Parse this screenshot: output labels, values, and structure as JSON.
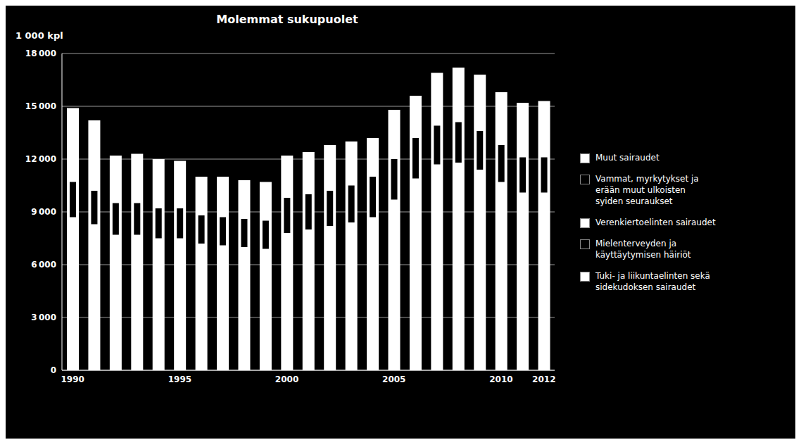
{
  "chart_data": {
    "type": "bar",
    "title": "Molemmat sukupuolet",
    "ylabel": "1 000 kpl",
    "background_color": "#000000",
    "categories": [
      "1990",
      null,
      null,
      null,
      null,
      "1995",
      null,
      null,
      null,
      null,
      "2000",
      null,
      null,
      null,
      null,
      "2005",
      null,
      null,
      null,
      null,
      "2010",
      null,
      "2012"
    ],
    "series": [
      {
        "color": "#ffffff",
        "values": [
          14900,
          14200,
          12200,
          12300,
          12000,
          11900,
          11000,
          11000,
          10800,
          10700,
          12200,
          12400,
          12800,
          13000,
          13200,
          14800,
          15600,
          16900,
          17200,
          16800,
          15800,
          15200,
          15300
        ]
      },
      {
        "color": "#000000",
        "values": [
          [
            8700,
            10700
          ],
          [
            8300,
            10200
          ],
          [
            7700,
            9500
          ],
          [
            7700,
            9500
          ],
          [
            7500,
            9200
          ],
          [
            7500,
            9200
          ],
          [
            7200,
            8800
          ],
          [
            7100,
            8700
          ],
          [
            7000,
            8600
          ],
          [
            6900,
            8500
          ],
          [
            7800,
            9800
          ],
          [
            8000,
            10000
          ],
          [
            8200,
            10200
          ],
          [
            8400,
            10500
          ],
          [
            8700,
            11000
          ],
          [
            9700,
            12000
          ],
          [
            10900,
            13200
          ],
          [
            11700,
            13900
          ],
          [
            11800,
            14100
          ],
          [
            11400,
            13600
          ],
          [
            10700,
            12800
          ],
          [
            10100,
            12100
          ],
          [
            10100,
            12100
          ]
        ]
      }
    ],
    "ylim": [
      0,
      18000
    ],
    "yticks": [
      0,
      {
        "value": 3000,
        "label": "3 000"
      },
      {
        "value": 6000,
        "label": "6 000"
      },
      {
        "value": 9000,
        "label": "9 000"
      },
      {
        "value": 12000,
        "label": "12 000"
      },
      {
        "value": 15000,
        "label": "15 000"
      },
      {
        "value": 18000,
        "label": "18 000"
      }
    ],
    "grid": true,
    "legend": "right",
    "legend_entries": [
      {
        "name": "Muut sairaudet",
        "color": "#ffffff"
      },
      {
        "name": "Vammat, myrkytykset ja\nerään muut ulkoisten\nsyiden seuraukset",
        "color": "#000000"
      },
      {
        "name": "Verenkiertoelinten sairaudet",
        "color": "#ffffff"
      },
      {
        "name": "Mielenterveyden ja\nkäyttäytymisen häiriöt",
        "color": "#000000"
      },
      {
        "name": "Tuki- ja liikuntaelinten sekä\nsidekudoksen sairaudet",
        "color": "#ffffff"
      }
    ]
  }
}
